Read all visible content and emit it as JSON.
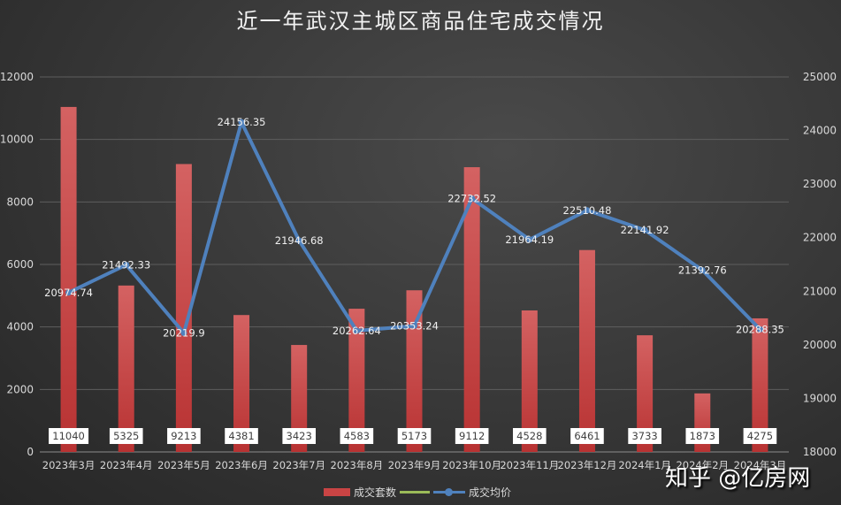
{
  "title": "近一年武汉主城区商品住宅成交情况",
  "legend": {
    "bar_label": "成交套数",
    "line_label": "成交均价"
  },
  "watermark": "知乎 @亿房网",
  "colors": {
    "bar": "#c94444",
    "line": "#4f81bd",
    "legend_extra": "#9bbb59",
    "background": "#3a3a3a"
  },
  "chart_data": {
    "type": "bar+line",
    "title": "近一年武汉主城区商品住宅成交情况",
    "categories": [
      "2023年3月",
      "2023年4月",
      "2023年5月",
      "2023年6月",
      "2023年7月",
      "2023年8月",
      "2023年9月",
      "2023年10月",
      "2023年11月",
      "2023年12月",
      "2024年1月",
      "2024年2月",
      "2024年3月"
    ],
    "series": [
      {
        "name": "成交套数",
        "type": "bar",
        "axis": "left",
        "values": [
          11040,
          5325,
          9213,
          4381,
          3423,
          4583,
          5173,
          9112,
          4528,
          6461,
          3733,
          1873,
          4275
        ]
      },
      {
        "name": "成交均价",
        "type": "line",
        "axis": "right",
        "values": [
          20974.74,
          21492.33,
          20219.9,
          24156.35,
          21946.68,
          20262.64,
          20353.24,
          22732.52,
          21964.19,
          22510.48,
          22141.92,
          21392.76,
          20288.35
        ]
      }
    ],
    "left_axis": {
      "ylim": [
        0,
        12000
      ],
      "ticks": [
        0,
        2000,
        4000,
        6000,
        8000,
        10000,
        12000
      ]
    },
    "right_axis": {
      "ylim": [
        18000,
        25000
      ],
      "ticks": [
        18000,
        19000,
        20000,
        21000,
        22000,
        23000,
        24000,
        25000
      ]
    },
    "grid": true,
    "legend_position": "bottom"
  }
}
